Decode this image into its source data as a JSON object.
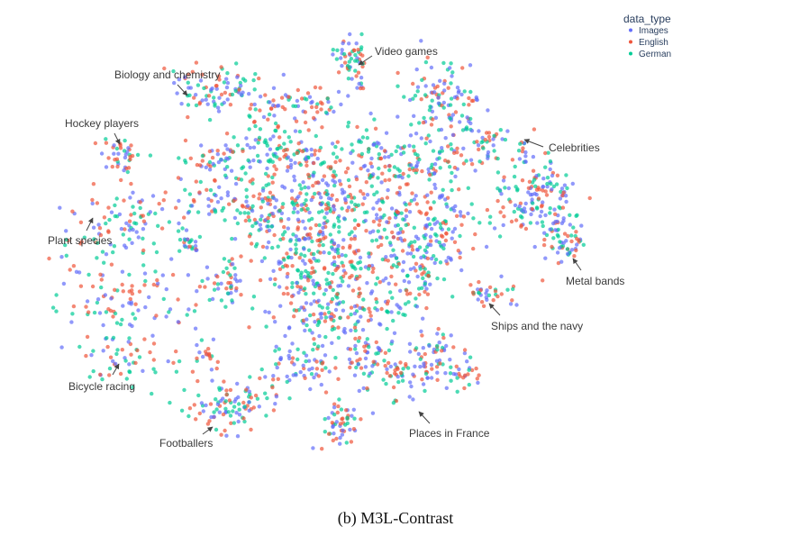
{
  "chart_data": {
    "type": "scatter",
    "title": "",
    "caption": "(b) M3L-Contrast",
    "legend": {
      "title": "data_type",
      "placement": "top-right",
      "entries": [
        {
          "name": "Images",
          "color": "#636efa"
        },
        {
          "name": "English",
          "color": "#ef553b"
        },
        {
          "name": "German",
          "color": "#00cc96"
        }
      ]
    },
    "xlabel": "",
    "ylabel": "",
    "axes_visible": false,
    "grid": false,
    "annotations": [
      "Video games",
      "Biology and chemistry",
      "Hockey players",
      "Celebrities",
      "Plant species",
      "Metal bands",
      "Ships and the navy",
      "Bicycle racing",
      "Places in France",
      "Footballers"
    ]
  }
}
